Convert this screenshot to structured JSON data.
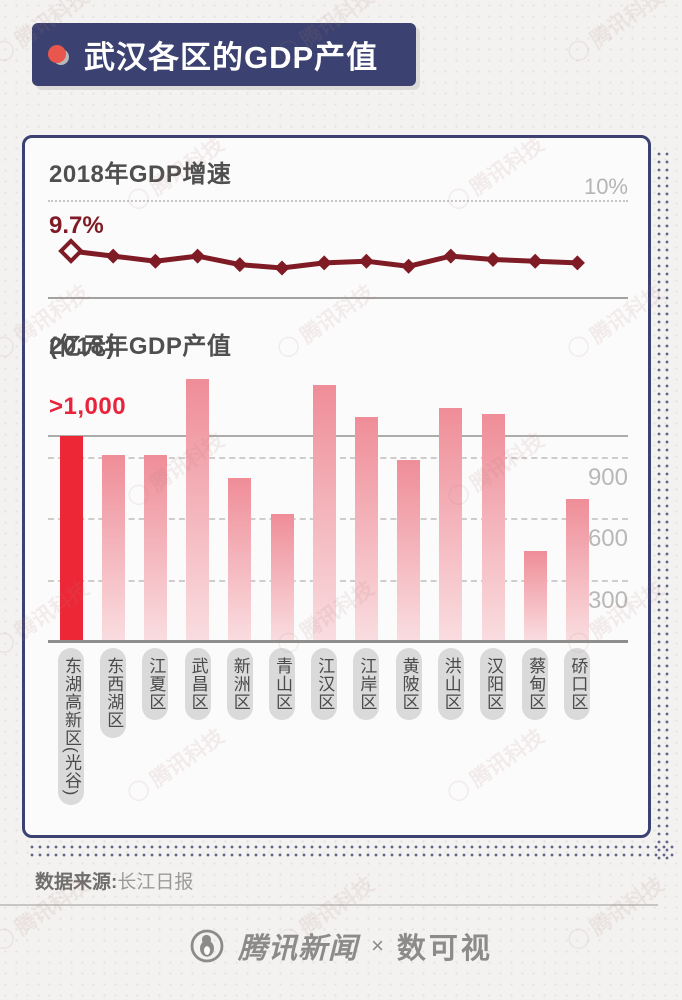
{
  "banner": {
    "title": "武汉各区的GDP产值"
  },
  "colors": {
    "navy": "#3b4170",
    "bright_red": "#ee2737",
    "dark_red": "#7e1b24",
    "label_red": "#e8243c",
    "bar_gradient_top": "#ef8d98",
    "bar_gradient_bottom": "#f9dde0",
    "axis_gray": "#b9b8b7",
    "card_bg": "#fcfbfb"
  },
  "chart_data": [
    {
      "type": "line",
      "title": "2018年GDP增速",
      "categories": [
        "东湖高新区(光谷)",
        "东西湖区",
        "江夏区",
        "武昌区",
        "新洲区",
        "青山区",
        "江汉区",
        "江岸区",
        "黄陂区",
        "洪山区",
        "汉阳区",
        "蔡甸区",
        "硚口区"
      ],
      "values": [
        9.7,
        9.67,
        9.64,
        9.67,
        9.62,
        9.6,
        9.63,
        9.64,
        9.61,
        9.67,
        9.65,
        9.64,
        9.63
      ],
      "labeled_point": {
        "index": 0,
        "label": "9.7%"
      },
      "reference_line": {
        "value": 10,
        "label": "10%"
      },
      "marker": "diamond",
      "first_marker": "hollow",
      "ylim": [
        9.5,
        10.05
      ],
      "grid": "reference line only",
      "note": "only first point value labeled on chart"
    },
    {
      "type": "bar",
      "title": "2018年GDP产值",
      "unit": "(亿元)",
      "categories": [
        "东湖高新区(光谷)",
        "东西湖区",
        "江夏区",
        "武昌区",
        "新洲区",
        "青山区",
        "江汉区",
        "江岸区",
        "黄陂区",
        "洪山区",
        "汉阳区",
        "蔡甸区",
        "硚口区"
      ],
      "values": [
        1000,
        905,
        905,
        1280,
        795,
        620,
        1250,
        1095,
        885,
        1135,
        1105,
        440,
        695
      ],
      "first_bar_label": ">1,000",
      "first_bar_highlighted": true,
      "first_bar_truncated": true,
      "gridlines": [
        900,
        600,
        300
      ],
      "gridline_labels": [
        "900",
        "600",
        "300"
      ],
      "solid_reference": 1000,
      "ylim": [
        0,
        1300
      ],
      "legend": "none"
    }
  ],
  "source": {
    "label": "数据来源",
    "separator": ":",
    "value": "长江日报"
  },
  "footer": {
    "news_logo": "tencent-news-penguin",
    "news_name": "腾讯新闻",
    "separator": "×",
    "partner_name": "数可视"
  },
  "watermark": {
    "text": "腾讯科技"
  }
}
